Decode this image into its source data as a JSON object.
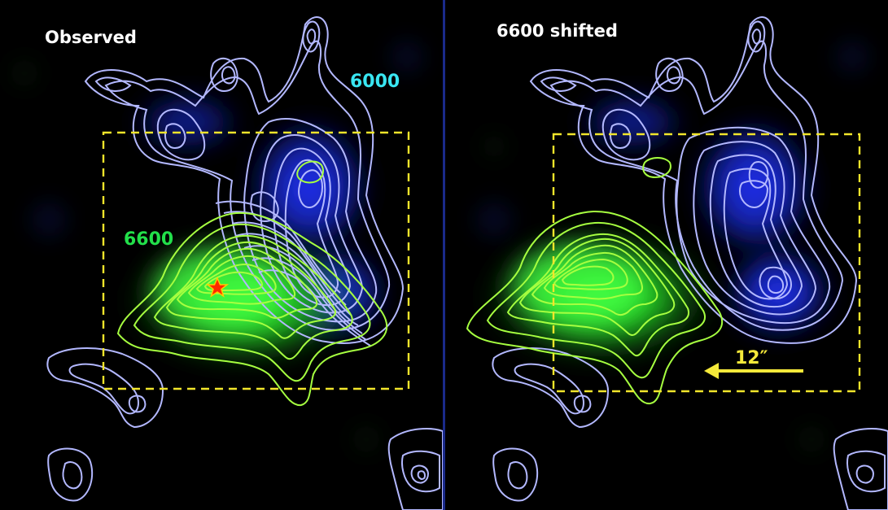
{
  "panels": [
    {
      "title": "Observed",
      "labels": {
        "green": "6600",
        "blue": "6000"
      }
    },
    {
      "title": "6600 shifted",
      "labels": {
        "arrow": "12″"
      }
    }
  ],
  "colors": {
    "background": "#000000",
    "blue_contour": "#b3b8ff",
    "green_contour": "#a6ff40",
    "green_emission": "#22dd22",
    "blue_emission": "#1f2cf0",
    "box": "#f2e52b",
    "star": "#ff2a00",
    "label_green": "#22e04a",
    "label_cyan": "#39e6f2",
    "label_yellow": "#f5e93a"
  },
  "icons": [
    "star-marker-icon",
    "arrow-left-icon"
  ]
}
